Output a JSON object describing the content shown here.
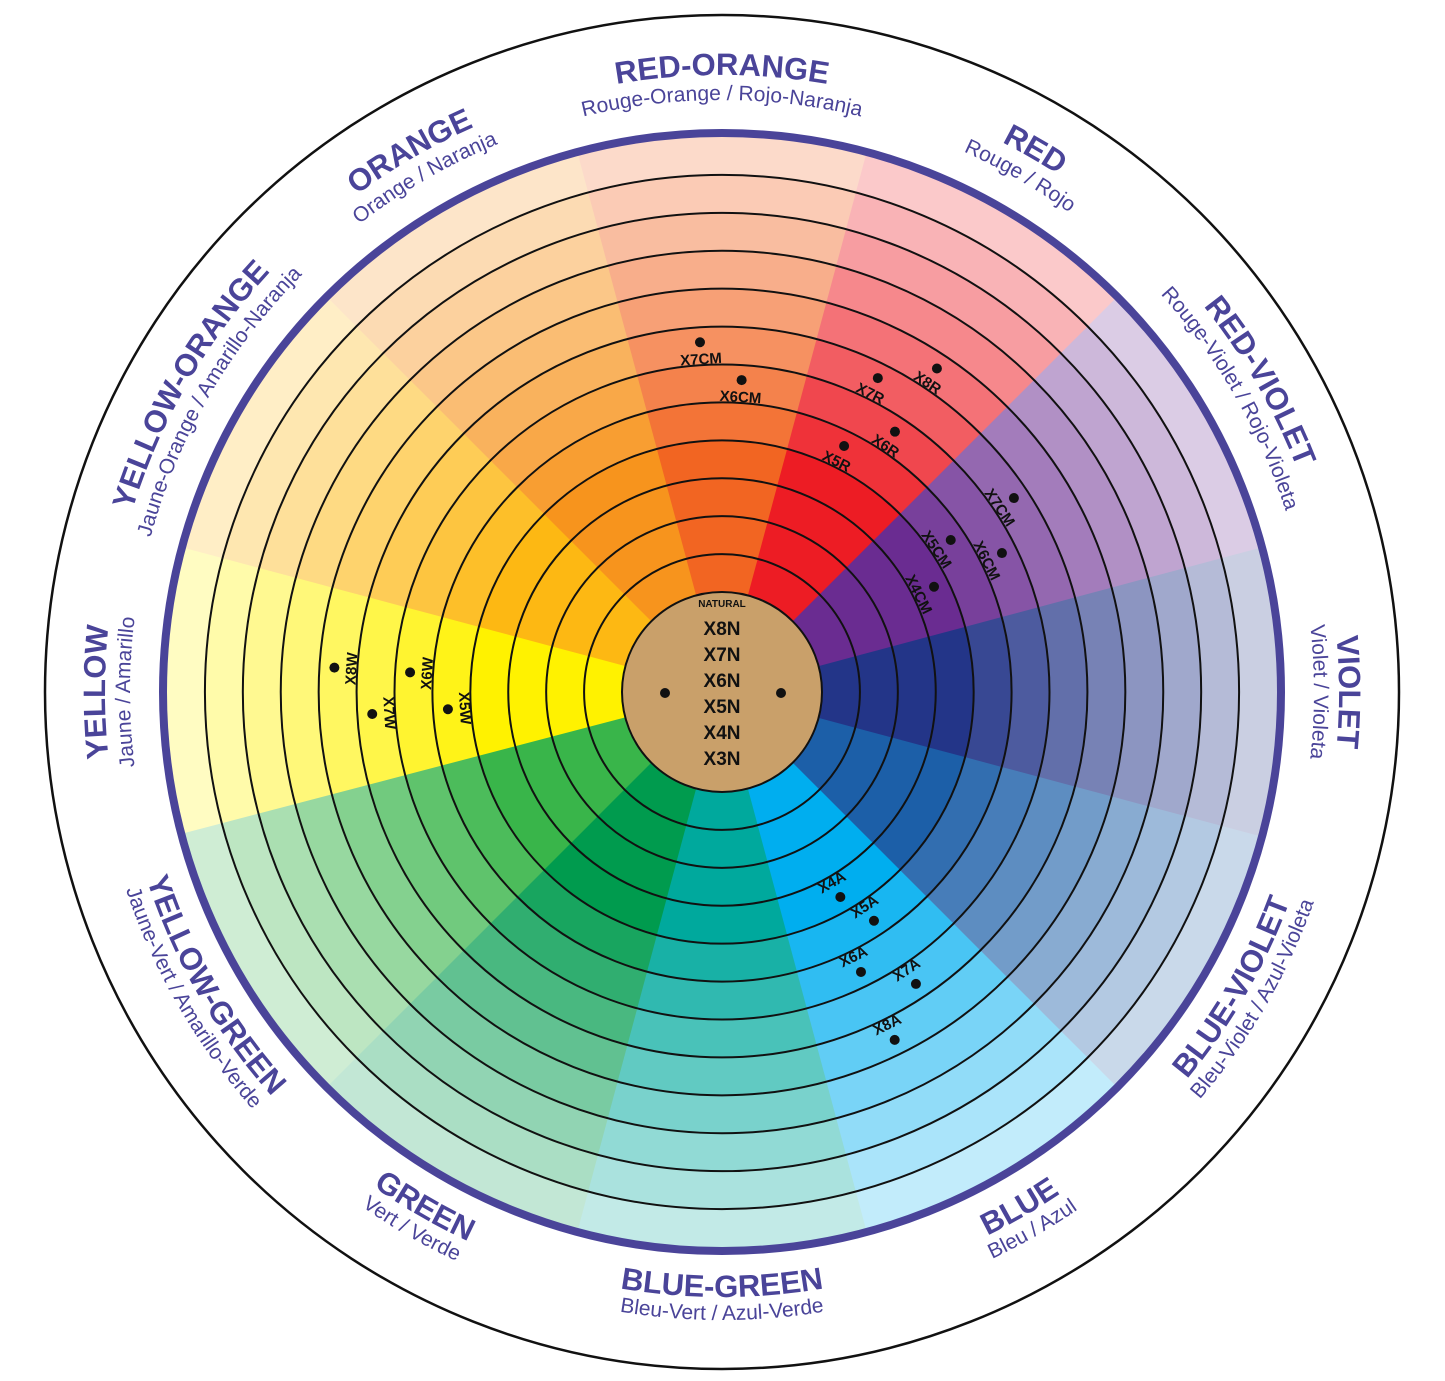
{
  "wheel": {
    "center_title": "NATURAL",
    "center_labels": [
      "X8N",
      "X7N",
      "X6N",
      "X5N",
      "X4N",
      "X3N"
    ],
    "center_color": "#c9a06a",
    "rim_color": "#4a4499",
    "segments": [
      {
        "name": "yellow",
        "color": "#fff200",
        "title": "YELLOW",
        "subtitle": "Jaune / Amarillo"
      },
      {
        "name": "yellow-orange",
        "color": "#fdb813",
        "title": "YELLOW-ORANGE",
        "subtitle": "Jaune-Orange / Amarillo-Naranja"
      },
      {
        "name": "orange",
        "color": "#f7941d",
        "title": "ORANGE",
        "subtitle": "Orange / Naranja"
      },
      {
        "name": "red-orange",
        "color": "#f26522",
        "title": "RED-ORANGE",
        "subtitle": "Rouge-Orange / Rojo-Naranja"
      },
      {
        "name": "red",
        "color": "#ed1c24",
        "title": "RED",
        "subtitle": "Rouge / Rojo"
      },
      {
        "name": "red-violet",
        "color": "#6a2c91",
        "title": "RED-VIOLET",
        "subtitle": "Rouge-Violet / Rojo-Violeta"
      },
      {
        "name": "violet",
        "color": "#233588",
        "title": "VIOLET",
        "subtitle": "Violet / Violeta"
      },
      {
        "name": "blue-violet",
        "color": "#1c5fa8",
        "title": "BLUE-VIOLET",
        "subtitle": "Bleu-Violet / Azul-Violeta"
      },
      {
        "name": "blue",
        "color": "#00aeef",
        "title": "BLUE",
        "subtitle": "Bleu / Azul"
      },
      {
        "name": "blue-green",
        "color": "#00a99d",
        "title": "BLUE-GREEN",
        "subtitle": "Bleu-Vert  / Azul-Verde"
      },
      {
        "name": "green",
        "color": "#009b4e",
        "title": "GREEN",
        "subtitle": "Vert / Verde"
      },
      {
        "name": "yellow-green",
        "color": "#39b54a",
        "title": "YELLOW-GREEN",
        "subtitle": "Jaune-Vert / Amarillo-Verde"
      }
    ],
    "shades": [
      {
        "label": "X8W",
        "segment": "yellow",
        "ring": 8
      },
      {
        "label": "X7W",
        "segment": "yellow",
        "ring": 7
      },
      {
        "label": "X6W",
        "segment": "yellow",
        "ring": 6
      },
      {
        "label": "X5W",
        "segment": "yellow",
        "ring": 5
      },
      {
        "label": "X6CM",
        "segment": "red-orange",
        "ring": 6
      },
      {
        "label": "X7CM",
        "segment": "red-orange",
        "ring": 7
      },
      {
        "label": "X8R",
        "segment": "red",
        "ring": 8
      },
      {
        "label": "X7R",
        "segment": "red",
        "ring": 7
      },
      {
        "label": "X6R",
        "segment": "red",
        "ring": 6
      },
      {
        "label": "X5R",
        "segment": "red",
        "ring": 5
      },
      {
        "label": "X4CM",
        "segment": "red-violet",
        "ring": 4
      },
      {
        "label": "X5CM",
        "segment": "red-violet",
        "ring": 5
      },
      {
        "label": "X6CM",
        "segment": "red-violet",
        "ring": 6
      },
      {
        "label": "X7CM",
        "segment": "red-violet",
        "ring": 7
      },
      {
        "label": "X8A",
        "segment": "blue",
        "ring": 8
      },
      {
        "label": "X7A",
        "segment": "blue",
        "ring": 7
      },
      {
        "label": "X6A",
        "segment": "blue",
        "ring": 6
      },
      {
        "label": "X5A",
        "segment": "blue",
        "ring": 5
      },
      {
        "label": "X4A",
        "segment": "blue",
        "ring": 4
      }
    ]
  }
}
